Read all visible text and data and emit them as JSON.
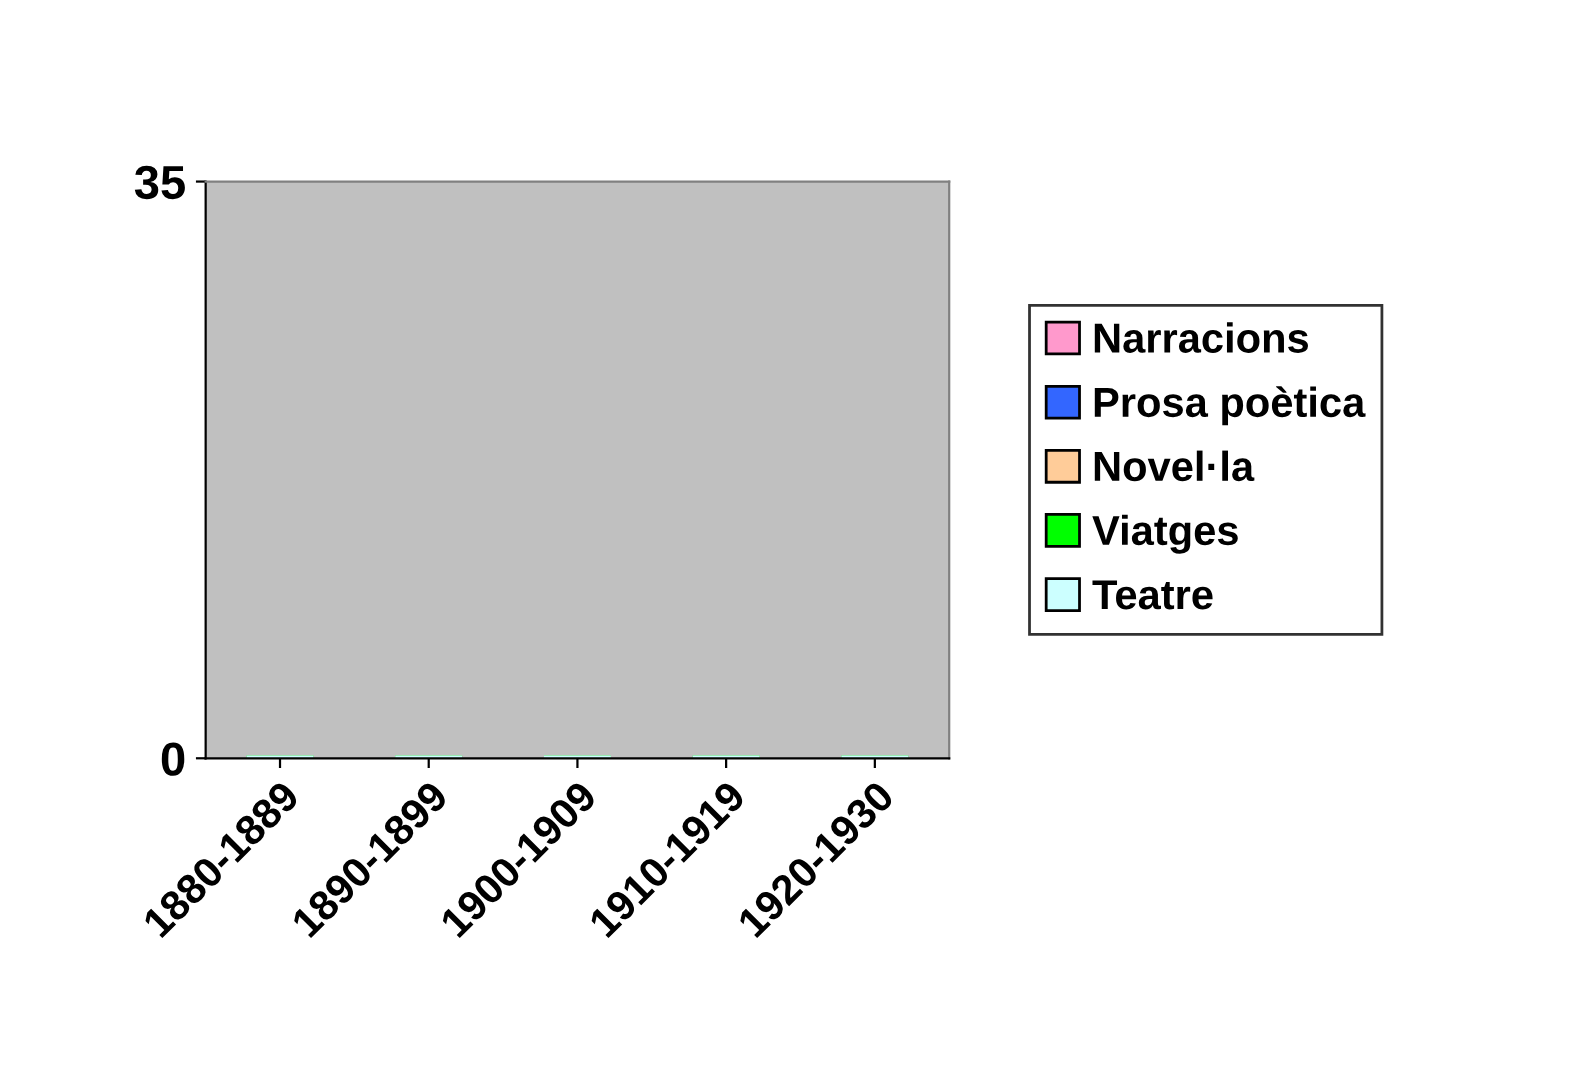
{
  "chart_data": {
    "type": "bar",
    "stacked": true,
    "categories": [
      "1880-1889",
      "1890-1899",
      "1900-1909",
      "1910-1919",
      "1920-1930"
    ],
    "series": [
      {
        "name": "Narracions",
        "color": "#ff99cc",
        "values": [
          0,
          0,
          0,
          0,
          0
        ]
      },
      {
        "name": "Prosa poètica",
        "color": "#3366ff",
        "values": [
          0,
          0,
          0,
          0,
          0
        ]
      },
      {
        "name": "Novel·la",
        "color": "#ffcc99",
        "values": [
          0,
          0,
          0,
          0,
          0
        ]
      },
      {
        "name": "Viatges",
        "color": "#00ff00",
        "values": [
          0,
          0,
          0,
          0,
          0
        ]
      },
      {
        "name": "Teatre",
        "color": "#ccffff",
        "values": [
          0,
          0,
          0,
          0,
          0
        ]
      }
    ],
    "ylim": [
      0,
      35
    ],
    "yticks": [
      0,
      35
    ],
    "grid": false,
    "legend": "right"
  }
}
